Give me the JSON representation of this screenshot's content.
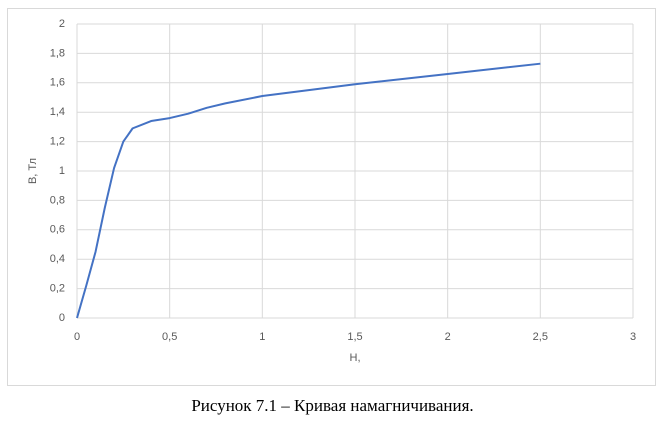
{
  "chart_data": {
    "type": "line",
    "caption": "Рисунок 7.1 – Кривая намагничивания.",
    "x_label": "H,",
    "y_label": "B, Тл",
    "x": [
      0,
      0.05,
      0.1,
      0.15,
      0.2,
      0.25,
      0.3,
      0.4,
      0.5,
      0.6,
      0.7,
      0.8,
      1,
      1.5,
      2,
      2.5
    ],
    "series": [
      {
        "color": "#4472c4",
        "values": [
          0,
          0.22,
          0.45,
          0.75,
          1.02,
          1.2,
          1.29,
          1.34,
          1.36,
          1.39,
          1.43,
          1.46,
          1.51,
          1.59,
          1.66,
          1.73
        ]
      }
    ],
    "xlim": [
      0,
      3
    ],
    "ylim": [
      0,
      2
    ],
    "xticks": [
      0,
      {
        "value": 0.5,
        "label": "0,5"
      },
      1,
      {
        "value": 1.5,
        "label": "1,5"
      },
      2,
      {
        "value": 2.5,
        "label": "2,5"
      },
      3
    ],
    "yticks": [
      0,
      {
        "value": 0.2,
        "label": "0,2"
      },
      {
        "value": 0.4,
        "label": "0,4"
      },
      {
        "value": 0.6,
        "label": "0,6"
      },
      {
        "value": 0.8,
        "label": "0,8"
      },
      1,
      {
        "value": 1.2,
        "label": "1,2"
      },
      {
        "value": 1.4,
        "label": "1,4"
      },
      {
        "value": 1.6,
        "label": "1,6"
      },
      {
        "value": 1.8,
        "label": "1,8"
      },
      2
    ],
    "grid": true
  }
}
